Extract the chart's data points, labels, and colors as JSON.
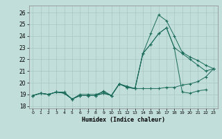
{
  "xlabel": "Humidex (Indice chaleur)",
  "xlim": [
    -0.5,
    23.5
  ],
  "ylim": [
    17.8,
    26.6
  ],
  "yticks": [
    18,
    19,
    20,
    21,
    22,
    23,
    24,
    25,
    26
  ],
  "xticks": [
    0,
    1,
    2,
    3,
    4,
    5,
    6,
    7,
    8,
    9,
    10,
    11,
    12,
    13,
    14,
    15,
    16,
    17,
    18,
    19,
    20,
    21,
    22,
    23
  ],
  "bg_color": "#c2deda",
  "grid_color": "#a8c8c4",
  "line_color": "#1a6b5a",
  "series": [
    [
      18.9,
      19.1,
      19.0,
      19.2,
      19.2,
      18.6,
      18.9,
      18.9,
      18.9,
      19.3,
      18.9,
      19.9,
      19.6,
      19.5,
      22.5,
      24.2,
      25.8,
      25.3,
      24.0,
      22.6,
      22.2,
      21.9,
      21.5,
      21.2
    ],
    [
      18.9,
      19.1,
      19.0,
      19.2,
      19.1,
      18.6,
      18.9,
      18.9,
      18.9,
      19.1,
      18.9,
      19.9,
      19.6,
      19.5,
      22.5,
      23.3,
      24.2,
      24.7,
      23.0,
      19.2,
      19.1,
      19.3,
      19.4,
      null
    ],
    [
      18.9,
      19.1,
      19.0,
      19.2,
      19.1,
      18.6,
      18.9,
      18.9,
      18.9,
      19.1,
      18.9,
      19.9,
      19.6,
      19.5,
      22.5,
      23.3,
      24.2,
      24.7,
      23.0,
      22.5,
      22.0,
      21.5,
      21.0,
      21.2
    ],
    [
      18.9,
      19.1,
      19.0,
      19.2,
      19.1,
      18.6,
      19.0,
      19.0,
      19.0,
      19.2,
      18.9,
      19.9,
      19.7,
      19.5,
      19.5,
      19.5,
      19.5,
      19.6,
      19.6,
      19.8,
      19.9,
      20.1,
      20.5,
      21.2
    ]
  ]
}
